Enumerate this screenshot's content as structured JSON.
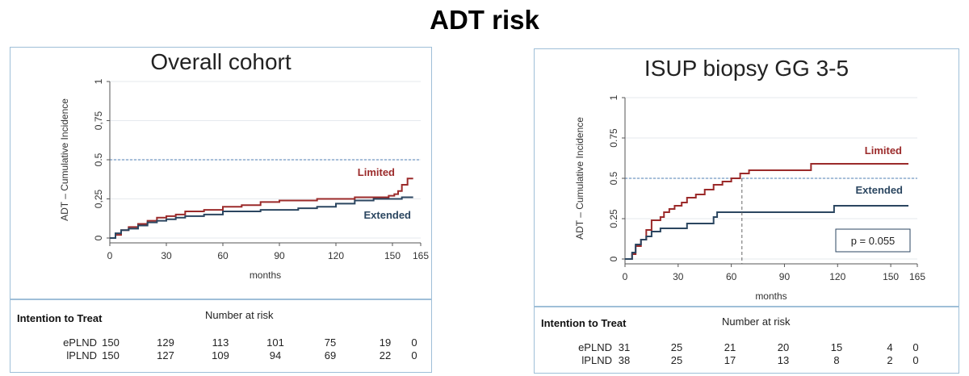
{
  "title": "ADT risk",
  "colors": {
    "limited": "#9b2a2a",
    "extended": "#2b4660",
    "threshold": "#4f7fb5",
    "panel_border": "#9fbfd8"
  },
  "chart_data": [
    {
      "type": "line",
      "title": "Overall cohort",
      "xlabel": "months",
      "ylabel": "ADT – Cumulative Incidence",
      "xlim": [
        0,
        165
      ],
      "ylim": [
        0,
        1
      ],
      "xticks": [
        "0",
        "30",
        "60",
        "90",
        "120",
        "150",
        "165"
      ],
      "yticks": [
        "0",
        "0,25",
        "0.5",
        "0,75",
        "1"
      ],
      "grid": true,
      "reference_line": 0.5,
      "series": [
        {
          "name": "Limited",
          "x": [
            0,
            3,
            6,
            10,
            15,
            20,
            25,
            30,
            35,
            40,
            50,
            60,
            70,
            80,
            90,
            100,
            110,
            120,
            130,
            140,
            148,
            151,
            153,
            155,
            158,
            161
          ],
          "y": [
            0,
            0.02,
            0.05,
            0.07,
            0.09,
            0.11,
            0.13,
            0.14,
            0.15,
            0.17,
            0.18,
            0.2,
            0.21,
            0.23,
            0.24,
            0.24,
            0.25,
            0.25,
            0.26,
            0.26,
            0.27,
            0.28,
            0.3,
            0.34,
            0.38,
            0.38
          ]
        },
        {
          "name": "Extended",
          "x": [
            0,
            3,
            6,
            10,
            15,
            20,
            25,
            30,
            35,
            40,
            50,
            60,
            70,
            80,
            90,
            100,
            110,
            120,
            130,
            140,
            150,
            155,
            161
          ],
          "y": [
            0,
            0.03,
            0.05,
            0.06,
            0.08,
            0.1,
            0.11,
            0.12,
            0.13,
            0.14,
            0.15,
            0.17,
            0.17,
            0.18,
            0.18,
            0.19,
            0.2,
            0.22,
            0.24,
            0.25,
            0.25,
            0.26,
            0.26
          ]
        }
      ],
      "risk_table": {
        "heading": "Intention to Treat",
        "caption": "Number at risk",
        "rows": [
          {
            "group": "ePLND",
            "values": [
              "150",
              "129",
              "113",
              "101",
              "75",
              "19",
              "0"
            ]
          },
          {
            "group": "lPLND",
            "values": [
              "150",
              "127",
              "109",
              "94",
              "69",
              "22",
              "0"
            ]
          }
        ]
      }
    },
    {
      "type": "line",
      "title": "ISUP biopsy GG 3-5",
      "xlabel": "months",
      "ylabel": "ADT – Cumulative Incidence",
      "xlim": [
        0,
        165
      ],
      "ylim": [
        0,
        1
      ],
      "xticks": [
        "0",
        "30",
        "60",
        "90",
        "120",
        "150",
        "165"
      ],
      "yticks": [
        "0",
        "0.25",
        "0.5",
        "0.75",
        "1"
      ],
      "grid": true,
      "reference_line": 0.5,
      "median_marker_x": 66,
      "annotation": "p = 0.055",
      "series": [
        {
          "name": "Limited",
          "x": [
            0,
            4,
            6,
            9,
            12,
            15,
            20,
            22,
            25,
            28,
            32,
            35,
            40,
            45,
            50,
            55,
            60,
            65,
            70,
            100,
            105,
            160
          ],
          "y": [
            0,
            0.03,
            0.08,
            0.12,
            0.18,
            0.24,
            0.26,
            0.29,
            0.31,
            0.33,
            0.35,
            0.38,
            0.4,
            0.43,
            0.46,
            0.48,
            0.5,
            0.53,
            0.55,
            0.55,
            0.59,
            0.59
          ]
        },
        {
          "name": "Extended",
          "x": [
            0,
            4,
            6,
            9,
            12,
            15,
            20,
            25,
            35,
            48,
            50,
            52,
            118,
            160
          ],
          "y": [
            0,
            0.04,
            0.09,
            0.12,
            0.14,
            0.17,
            0.19,
            0.19,
            0.22,
            0.22,
            0.26,
            0.29,
            0.33,
            0.33
          ]
        }
      ],
      "risk_table": {
        "heading": "Intention to Treat",
        "caption": "Number at risk",
        "rows": [
          {
            "group": "ePLND",
            "values": [
              "31",
              "25",
              "21",
              "20",
              "15",
              "4",
              "0"
            ]
          },
          {
            "group": "lPLND",
            "values": [
              "38",
              "25",
              "17",
              "13",
              "8",
              "2",
              "0"
            ]
          }
        ]
      }
    }
  ]
}
